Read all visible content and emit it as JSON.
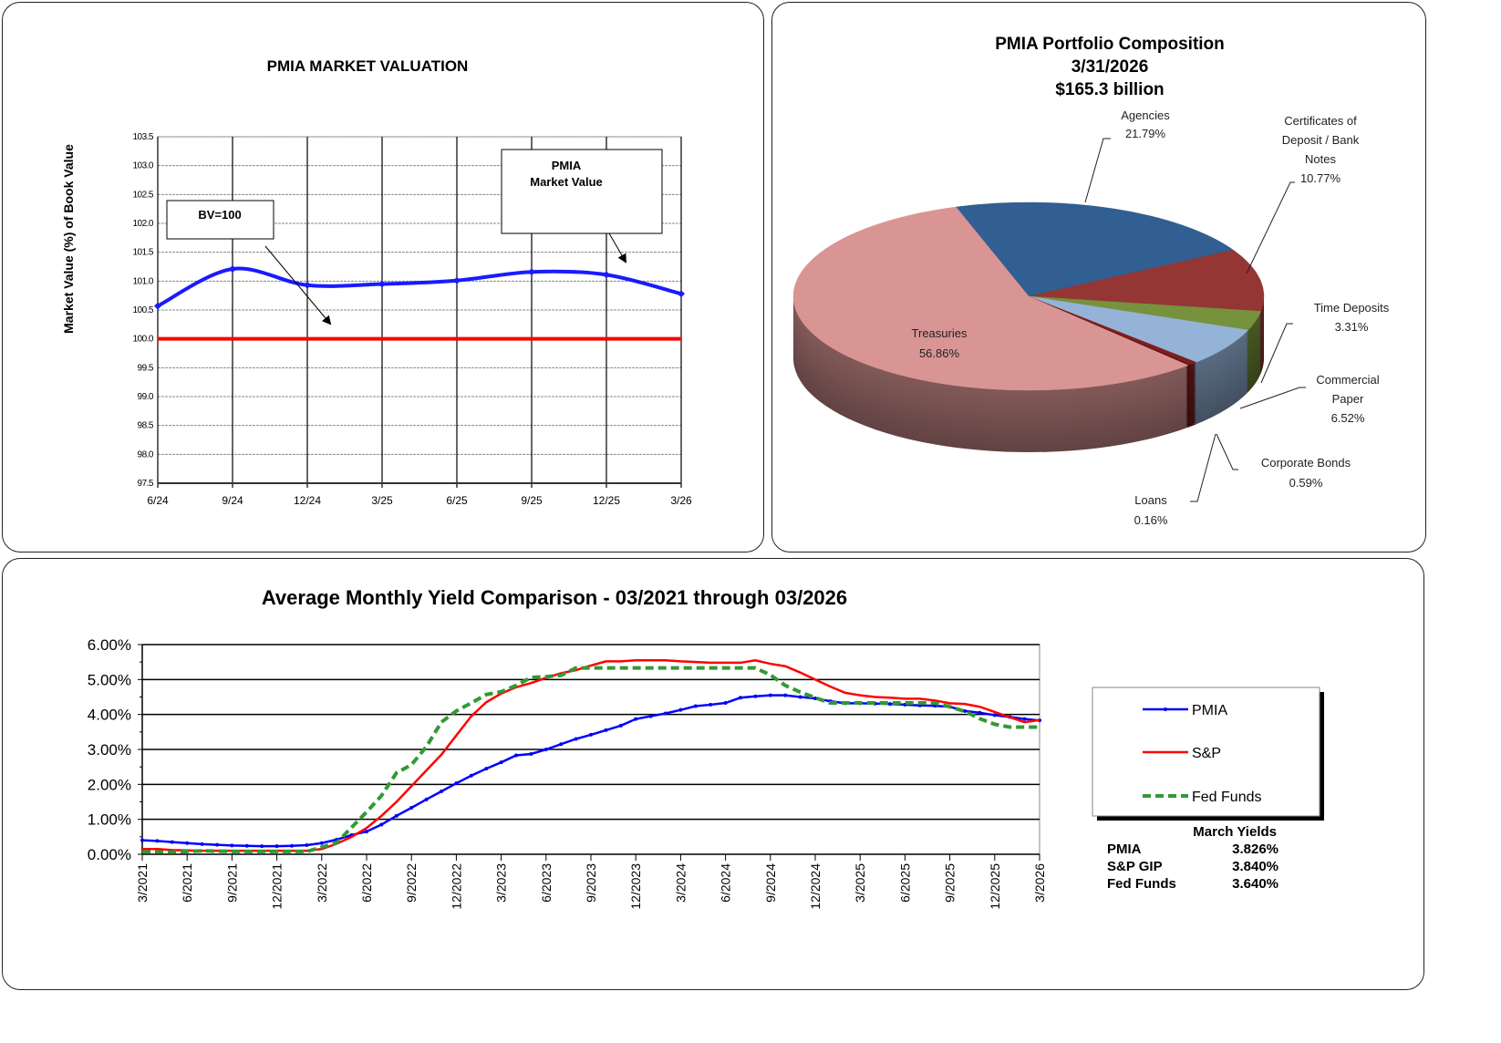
{
  "chart_data": [
    {
      "type": "line",
      "title": "PMIA MARKET VALUATION",
      "ylabel": "Market Value (%) of Book Value",
      "xlabel": "",
      "categories": [
        "6/24",
        "9/24",
        "12/24",
        "3/25",
        "6/25",
        "9/25",
        "12/25",
        "3/26"
      ],
      "ylim": [
        97.5,
        103.5
      ],
      "yticks": [
        "97.5",
        "98.0",
        "98.5",
        "99.0",
        "99.5",
        "100.0",
        "100.5",
        "101.0",
        "101.5",
        "102.0",
        "102.5",
        "103.0",
        "103.5"
      ],
      "grid": true,
      "series": [
        {
          "name": "PMIA Market Value",
          "color": "#1a1aff",
          "values": [
            100.57,
            101.21,
            100.93,
            100.95,
            101.01,
            101.16,
            101.11,
            100.78
          ]
        }
      ],
      "reference_line": {
        "value": 100.0,
        "color": "#ff0000"
      },
      "annotations": [
        {
          "id": "bv",
          "text": "BV=100"
        },
        {
          "id": "pmia",
          "lines": [
            "PMIA",
            "Market Value"
          ]
        }
      ]
    },
    {
      "type": "pie",
      "title": "PMIA Portfolio Composition",
      "subtitle_date": "3/31/2026",
      "subtitle_total": "$165.3 billion",
      "three_d": true,
      "slices": [
        {
          "label": [
            "Agencies"
          ],
          "pct": "21.79%",
          "value": 21.79,
          "color": "#325f91"
        },
        {
          "label": [
            "Certificates of",
            "Deposit / Bank",
            "Notes"
          ],
          "pct": "10.77%",
          "value": 10.77,
          "color": "#943634"
        },
        {
          "label": [
            "Time Deposits"
          ],
          "pct": "3.31%",
          "value": 3.31,
          "color": "#76923c"
        },
        {
          "label": [
            "Commercial",
            "Paper"
          ],
          "pct": "6.52%",
          "value": 6.52,
          "color": "#95b3d7"
        },
        {
          "label": [
            "Corporate Bonds"
          ],
          "pct": "0.59%",
          "value": 0.59,
          "color": "#7f1e1e"
        },
        {
          "label": [
            "Loans"
          ],
          "pct": "0.16%",
          "value": 0.16,
          "color": "#5a1010"
        },
        {
          "label": [
            "Treasuries"
          ],
          "pct": "56.86%",
          "value": 56.86,
          "color": "#d99594"
        }
      ]
    },
    {
      "type": "line",
      "title": "Average Monthly Yield Comparison - 03/2021 through 03/2026",
      "xlabel": "",
      "ylabel": "",
      "ylim": [
        0,
        6
      ],
      "yticks": [
        "0.00%",
        "1.00%",
        "2.00%",
        "3.00%",
        "4.00%",
        "5.00%",
        "6.00%"
      ],
      "xticks": [
        "3/2021",
        "6/2021",
        "9/2021",
        "12/2021",
        "3/2022",
        "6/2022",
        "9/2022",
        "12/2022",
        "3/2023",
        "6/2023",
        "9/2023",
        "12/2023",
        "3/2024",
        "6/2024",
        "9/2024",
        "12/2024",
        "3/2025",
        "6/2025",
        "9/2025",
        "12/2025",
        "3/2026"
      ],
      "x_start": "3/2021",
      "x_end": "3/2026",
      "x_interval": "monthly",
      "grid": true,
      "legend_position": "right",
      "series": [
        {
          "name": "PMIA",
          "color": "#0000ff",
          "style": "solid-markers",
          "values": [
            0.4,
            0.38,
            0.35,
            0.32,
            0.29,
            0.27,
            0.25,
            0.24,
            0.23,
            0.23,
            0.24,
            0.26,
            0.32,
            0.42,
            0.55,
            0.65,
            0.85,
            1.1,
            1.33,
            1.57,
            1.8,
            2.03,
            2.25,
            2.45,
            2.63,
            2.83,
            2.87,
            3.0,
            3.15,
            3.3,
            3.42,
            3.55,
            3.68,
            3.87,
            3.95,
            4.03,
            4.13,
            4.24,
            4.28,
            4.33,
            4.48,
            4.52,
            4.55,
            4.55,
            4.5,
            4.46,
            4.38,
            4.32,
            4.32,
            4.31,
            4.3,
            4.28,
            4.26,
            4.25,
            4.22,
            4.1,
            4.05,
            3.98,
            3.93,
            3.87,
            3.83
          ]
        },
        {
          "name": "S&P",
          "color": "#ff0000",
          "style": "solid",
          "values": [
            0.15,
            0.15,
            0.12,
            0.11,
            0.1,
            0.1,
            0.1,
            0.1,
            0.1,
            0.1,
            0.1,
            0.1,
            0.15,
            0.3,
            0.5,
            0.75,
            1.1,
            1.5,
            1.95,
            2.4,
            2.85,
            3.4,
            3.95,
            4.35,
            4.6,
            4.78,
            4.9,
            5.05,
            5.18,
            5.27,
            5.4,
            5.52,
            5.52,
            5.55,
            5.55,
            5.55,
            5.52,
            5.5,
            5.48,
            5.48,
            5.48,
            5.55,
            5.45,
            5.38,
            5.2,
            5.0,
            4.8,
            4.62,
            4.55,
            4.5,
            4.48,
            4.45,
            4.45,
            4.4,
            4.32,
            4.3,
            4.22,
            4.07,
            3.92,
            3.78,
            3.84
          ]
        },
        {
          "name": "Fed Funds",
          "color": "#339933",
          "style": "dashed",
          "values": [
            0.07,
            0.07,
            0.06,
            0.08,
            0.1,
            0.09,
            0.08,
            0.08,
            0.08,
            0.08,
            0.08,
            0.08,
            0.2,
            0.33,
            0.77,
            1.21,
            1.68,
            2.33,
            2.56,
            3.08,
            3.78,
            4.1,
            4.33,
            4.57,
            4.65,
            4.83,
            5.06,
            5.08,
            5.12,
            5.33,
            5.33,
            5.33,
            5.33,
            5.33,
            5.33,
            5.33,
            5.33,
            5.33,
            5.33,
            5.33,
            5.33,
            5.33,
            5.13,
            4.83,
            4.64,
            4.48,
            4.33,
            4.33,
            4.33,
            4.33,
            4.33,
            4.33,
            4.33,
            4.33,
            4.22,
            4.09,
            3.88,
            3.72,
            3.64,
            3.64,
            3.64
          ]
        }
      ],
      "march_yields": {
        "title": "March Yields",
        "rows": [
          {
            "label": "PMIA",
            "value": "3.826%"
          },
          {
            "label": "S&P GIP",
            "value": "3.840%"
          },
          {
            "label": "Fed Funds",
            "value": "3.640%"
          }
        ]
      }
    }
  ]
}
